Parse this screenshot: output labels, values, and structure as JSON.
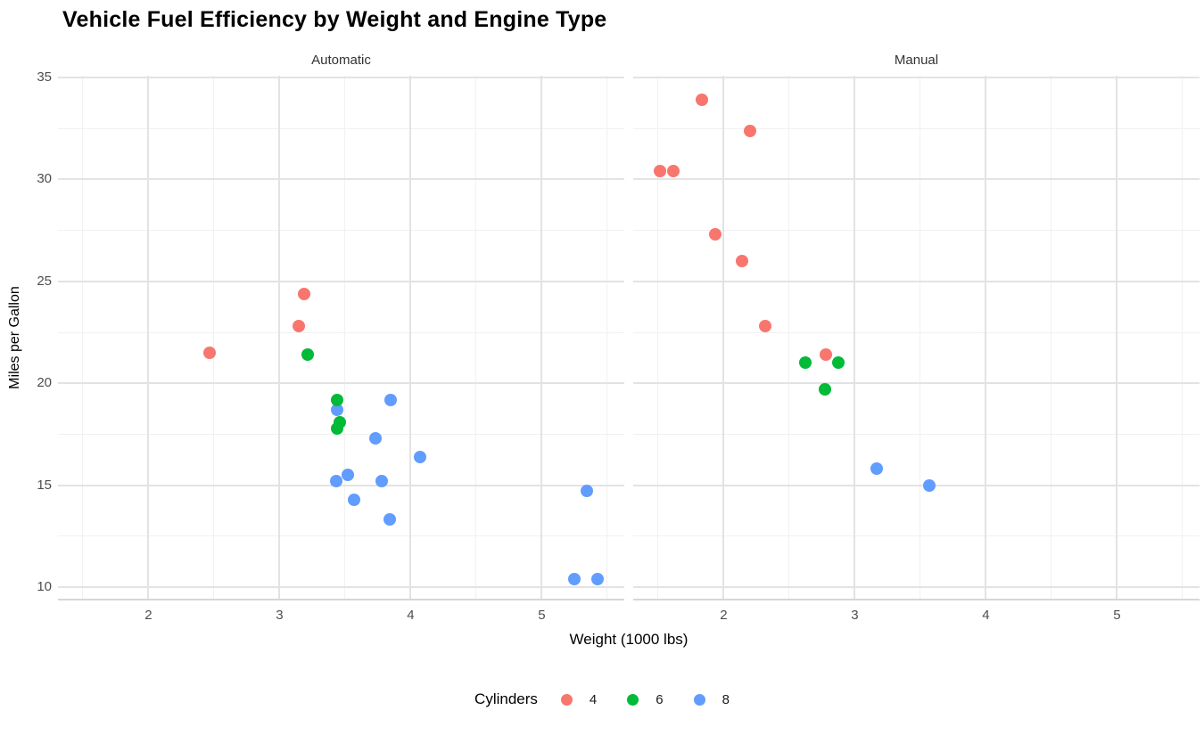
{
  "page": {
    "title": "Vehicle Fuel Efficiency by Weight and Engine Type"
  },
  "chart_data": {
    "type": "scatter",
    "title": "Vehicle Fuel Efficiency by Weight and Engine Type",
    "xlabel": "Weight (1000 lbs)",
    "ylabel": "Miles per Gallon",
    "x_domain": [
      1.31,
      5.63
    ],
    "y_domain": [
      9.43,
      35.09
    ],
    "x_ticks": [
      2,
      3,
      4,
      5
    ],
    "x_minor_ticks": [
      1.5,
      2.5,
      3.5,
      4.5,
      5.5
    ],
    "y_ticks": [
      10,
      15,
      20,
      25,
      30,
      35
    ],
    "y_minor_ticks": [
      12.5,
      17.5,
      22.5,
      27.5,
      32.5
    ],
    "grid": "on",
    "legend": {
      "title": "Cylinders",
      "position": "bottom",
      "entries": [
        {
          "label": "4",
          "color": "#F8766D"
        },
        {
          "label": "6",
          "color": "#00BA38"
        },
        {
          "label": "8",
          "color": "#619CFF"
        }
      ]
    },
    "colors": {
      "4": "#F8766D",
      "6": "#00BA38",
      "8": "#619CFF"
    },
    "facets": [
      {
        "label": "Automatic",
        "points": [
          {
            "wt": 3.215,
            "mpg": 21.4,
            "cyl": 6
          },
          {
            "wt": 3.44,
            "mpg": 18.7,
            "cyl": 8
          },
          {
            "wt": 3.46,
            "mpg": 18.1,
            "cyl": 6
          },
          {
            "wt": 3.57,
            "mpg": 14.3,
            "cyl": 8
          },
          {
            "wt": 3.19,
            "mpg": 24.4,
            "cyl": 4
          },
          {
            "wt": 3.15,
            "mpg": 22.8,
            "cyl": 4
          },
          {
            "wt": 3.44,
            "mpg": 19.2,
            "cyl": 6
          },
          {
            "wt": 3.44,
            "mpg": 17.8,
            "cyl": 6
          },
          {
            "wt": 4.07,
            "mpg": 16.4,
            "cyl": 8
          },
          {
            "wt": 3.73,
            "mpg": 17.3,
            "cyl": 8
          },
          {
            "wt": 3.78,
            "mpg": 15.2,
            "cyl": 8
          },
          {
            "wt": 5.25,
            "mpg": 10.4,
            "cyl": 8
          },
          {
            "wt": 5.424,
            "mpg": 10.4,
            "cyl": 8
          },
          {
            "wt": 5.345,
            "mpg": 14.7,
            "cyl": 8
          },
          {
            "wt": 2.465,
            "mpg": 21.5,
            "cyl": 4
          },
          {
            "wt": 3.52,
            "mpg": 15.5,
            "cyl": 8
          },
          {
            "wt": 3.435,
            "mpg": 15.2,
            "cyl": 8
          },
          {
            "wt": 3.84,
            "mpg": 13.3,
            "cyl": 8
          },
          {
            "wt": 3.845,
            "mpg": 19.2,
            "cyl": 8
          }
        ]
      },
      {
        "label": "Manual",
        "points": [
          {
            "wt": 2.62,
            "mpg": 21.0,
            "cyl": 6
          },
          {
            "wt": 2.875,
            "mpg": 21.0,
            "cyl": 6
          },
          {
            "wt": 2.32,
            "mpg": 22.8,
            "cyl": 4
          },
          {
            "wt": 2.2,
            "mpg": 32.4,
            "cyl": 4
          },
          {
            "wt": 1.615,
            "mpg": 30.4,
            "cyl": 4
          },
          {
            "wt": 1.835,
            "mpg": 33.9,
            "cyl": 4
          },
          {
            "wt": 1.935,
            "mpg": 27.3,
            "cyl": 4
          },
          {
            "wt": 2.14,
            "mpg": 26.0,
            "cyl": 4
          },
          {
            "wt": 1.513,
            "mpg": 30.4,
            "cyl": 4
          },
          {
            "wt": 3.17,
            "mpg": 15.8,
            "cyl": 8
          },
          {
            "wt": 2.77,
            "mpg": 19.7,
            "cyl": 6
          },
          {
            "wt": 3.57,
            "mpg": 15.0,
            "cyl": 8
          },
          {
            "wt": 2.78,
            "mpg": 21.4,
            "cyl": 4
          }
        ]
      }
    ]
  }
}
